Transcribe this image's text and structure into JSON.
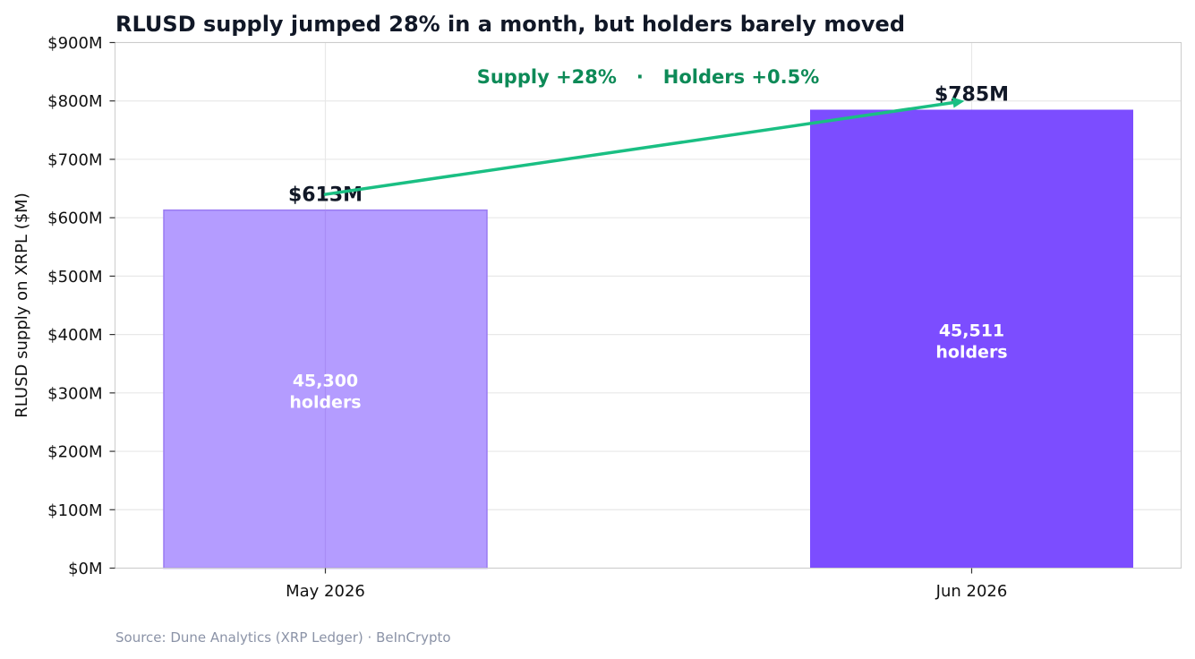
{
  "chart_data": {
    "type": "bar",
    "title": "RLUSD supply jumped 28% in a month, but holders barely moved",
    "xlabel": "",
    "ylabel": "RLUSD supply on XRPL ($M)",
    "ylim": [
      0,
      900
    ],
    "yticks": [
      0,
      100,
      200,
      300,
      400,
      500,
      600,
      700,
      800,
      900
    ],
    "ytick_labels": [
      "$0M",
      "$100M",
      "$200M",
      "$300M",
      "$400M",
      "$500M",
      "$600M",
      "$700M",
      "$800M",
      "$900M"
    ],
    "categories": [
      "May 2026",
      "Jun 2026"
    ],
    "values": [
      613,
      785
    ],
    "value_labels": [
      "$613M",
      "$785M"
    ],
    "holders_labels": [
      [
        "45,300",
        "holders"
      ],
      [
        "45,511",
        "holders"
      ]
    ],
    "bar_colors": [
      "#b49cff",
      "#7c4dff"
    ],
    "arrow": {
      "from": 640,
      "to": 800,
      "color": "#1abf83"
    },
    "annotation": "Supply +28%   ·   Holders +0.5%",
    "annotation_color": "#0d8a57",
    "grid": true,
    "source": "Source: Dune Analytics (XRP Ledger) · BeInCrypto"
  }
}
